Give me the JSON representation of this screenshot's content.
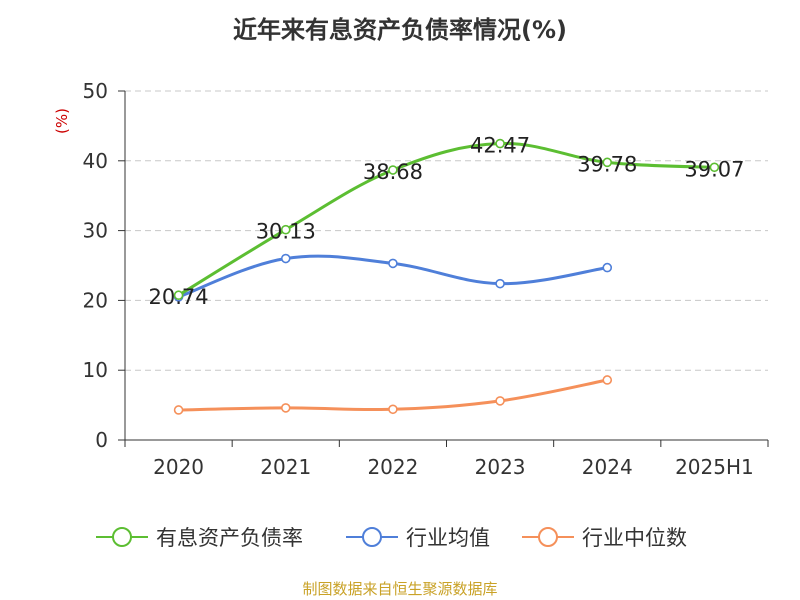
{
  "chart_data": {
    "type": "line",
    "title": "近年来有息资产负债率情况(%)",
    "ylabel": "(%)",
    "categories": [
      "2020",
      "2021",
      "2022",
      "2023",
      "2024",
      "2025H1"
    ],
    "ylim": [
      0,
      50
    ],
    "yticks": [
      0,
      10,
      20,
      30,
      40,
      50
    ],
    "grid": true,
    "legend_position": "bottom",
    "series": [
      {
        "name": "有息资产负债率",
        "color": "#5cbe32",
        "values": [
          20.74,
          30.13,
          38.68,
          42.47,
          39.78,
          39.07
        ],
        "labels": [
          "20.74",
          "30.13",
          "38.68",
          "42.47",
          "39.78",
          "39.07"
        ]
      },
      {
        "name": "行业均值",
        "color": "#4f7fd9",
        "values": [
          20.5,
          26.0,
          25.3,
          22.4,
          24.7,
          null
        ],
        "labels": []
      },
      {
        "name": "行业中位数",
        "color": "#f5905a",
        "values": [
          4.3,
          4.6,
          4.4,
          5.6,
          8.6,
          null
        ],
        "labels": []
      }
    ]
  },
  "source": "制图数据来自恒生聚源数据库"
}
